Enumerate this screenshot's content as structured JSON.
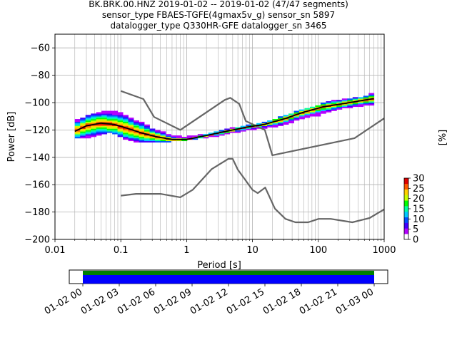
{
  "title_lines": [
    "BK.BRK.00.HNZ   2019-01-02 -- 2019-01-02  (47/47 segments)",
    "sensor_type FBAES-TGFE(4gmax5v_g) sensor_sn 5897",
    "datalogger_type Q330HR-GFE datalogger_sn 3465"
  ],
  "chart_data": {
    "type": "heatmap",
    "xlabel": "Period [s]",
    "ylabel": "Power [dB]",
    "xscale": "log",
    "xlim": [
      0.01,
      1000
    ],
    "ylim": [
      -200,
      -50
    ],
    "xticks": [
      {
        "v": 0.01,
        "label": "0.01"
      },
      {
        "v": 0.1,
        "label": "0.1"
      },
      {
        "v": 1,
        "label": "1"
      },
      {
        "v": 10,
        "label": "10"
      },
      {
        "v": 100,
        "label": "100"
      },
      {
        "v": 1000,
        "label": "1000"
      }
    ],
    "yticks": [
      {
        "v": -60,
        "label": "−60"
      },
      {
        "v": -80,
        "label": "−80"
      },
      {
        "v": -100,
        "label": "−100"
      },
      {
        "v": -120,
        "label": "−120"
      },
      {
        "v": -140,
        "label": "−140"
      },
      {
        "v": -160,
        "label": "−160"
      },
      {
        "v": -180,
        "label": "−180"
      },
      {
        "v": -200,
        "label": "−200"
      }
    ],
    "grid": true,
    "nhnm": [
      [
        0.1,
        -91.5
      ],
      [
        0.22,
        -97.4
      ],
      [
        0.32,
        -110.5
      ],
      [
        0.8,
        -120
      ],
      [
        3.8,
        -98
      ],
      [
        4.6,
        -96.5
      ],
      [
        6.3,
        -101
      ],
      [
        7.9,
        -113.5
      ],
      [
        15.4,
        -120
      ],
      [
        20,
        -138.5
      ],
      [
        354.8,
        -126
      ],
      [
        1000,
        -111.5
      ]
    ],
    "nlnm": [
      [
        0.1,
        -168
      ],
      [
        0.17,
        -166.7
      ],
      [
        0.4,
        -166.7
      ],
      [
        0.8,
        -169.2
      ],
      [
        1.24,
        -163.7
      ],
      [
        2.4,
        -148.6
      ],
      [
        4.3,
        -141.1
      ],
      [
        5,
        -141.1
      ],
      [
        6,
        -149
      ],
      [
        10,
        -163.8
      ],
      [
        12,
        -166.2
      ],
      [
        15.6,
        -162.1
      ],
      [
        21.9,
        -177.5
      ],
      [
        31.6,
        -185
      ],
      [
        45,
        -187.5
      ],
      [
        70,
        -187.5
      ],
      [
        101,
        -185
      ],
      [
        154,
        -185
      ],
      [
        328,
        -187.5
      ],
      [
        600,
        -184.4
      ],
      [
        1000,
        -178
      ]
    ],
    "mode": [
      [
        0.02,
        -121
      ],
      [
        0.03,
        -117
      ],
      [
        0.05,
        -115
      ],
      [
        0.08,
        -116
      ],
      [
        0.12,
        -118.5
      ],
      [
        0.2,
        -122
      ],
      [
        0.35,
        -125
      ],
      [
        0.6,
        -127
      ],
      [
        1,
        -127
      ],
      [
        2,
        -124
      ],
      [
        4,
        -121
      ],
      [
        8,
        -118
      ],
      [
        15,
        -116
      ],
      [
        30,
        -112
      ],
      [
        60,
        -107
      ],
      [
        120,
        -103
      ],
      [
        300,
        -100
      ],
      [
        700,
        -97
      ]
    ],
    "density_ranges": [
      [
        0.02,
        -125,
        -112
      ],
      [
        0.025,
        -126,
        -112
      ],
      [
        0.03,
        -126,
        -110
      ],
      [
        0.04,
        -124,
        -108
      ],
      [
        0.06,
        -122,
        -106
      ],
      [
        0.08,
        -122,
        -106
      ],
      [
        0.1,
        -125,
        -108
      ],
      [
        0.13,
        -127,
        -110
      ],
      [
        0.17,
        -128,
        -113
      ],
      [
        0.22,
        -129,
        -115
      ],
      [
        0.3,
        -129,
        -119
      ],
      [
        0.45,
        -129,
        -122
      ],
      [
        0.6,
        -128,
        -124
      ],
      [
        0.8,
        -128,
        -125
      ],
      [
        1,
        -127,
        -125
      ],
      [
        1.5,
        -126,
        -124
      ],
      [
        2,
        -125,
        -123
      ],
      [
        3,
        -124,
        -121
      ],
      [
        4,
        -123,
        -120
      ],
      [
        6,
        -121,
        -118
      ],
      [
        8,
        -120,
        -117
      ],
      [
        12,
        -119,
        -116
      ],
      [
        18,
        -118,
        -114
      ],
      [
        25,
        -117,
        -111
      ],
      [
        40,
        -114,
        -108
      ],
      [
        60,
        -111,
        -105
      ],
      [
        100,
        -109,
        -102
      ],
      [
        150,
        -106,
        -99
      ],
      [
        220,
        -104,
        -98
      ],
      [
        330,
        -103,
        -97
      ],
      [
        500,
        -102,
        -96
      ],
      [
        700,
        -101,
        -93
      ]
    ],
    "colorbar": {
      "label": "[%]",
      "range": [
        0,
        30
      ],
      "ticks": [
        {
          "v": 0,
          "label": "0"
        },
        {
          "v": 5,
          "label": "5"
        },
        {
          "v": 10,
          "label": "10"
        },
        {
          "v": 15,
          "label": "15"
        },
        {
          "v": 20,
          "label": "20"
        },
        {
          "v": 25,
          "label": "25"
        },
        {
          "v": 30,
          "label": "30"
        }
      ],
      "colors": [
        "#ffffff",
        "#b400ff",
        "#4000ff",
        "#0050ff",
        "#00c8ff",
        "#00ffa0",
        "#00ff00",
        "#c8ff00",
        "#ffd000",
        "#ff5a00",
        "#e00000"
      ]
    },
    "time_axis": {
      "ticks": [
        "01-02 00",
        "01-02 03",
        "01-02 06",
        "01-02 09",
        "01-02 12",
        "01-02 15",
        "01-02 18",
        "01-02 21",
        "01-03 00"
      ],
      "coverage_colors": [
        "#008000",
        "#0000ff"
      ]
    }
  }
}
